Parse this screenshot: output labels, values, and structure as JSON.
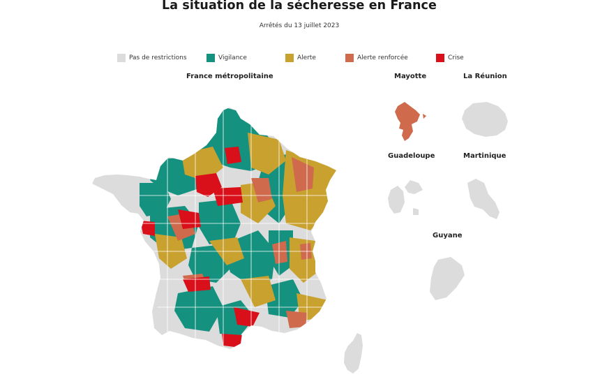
{
  "title": "La situation de la sécheresse en France",
  "subtitle": "Arrêtés du 13 juillet 2023",
  "legend": [
    {
      "label": "Pas de restrictions",
      "color": "#dcdcdc"
    },
    {
      "label": "Vigilance",
      "color": "#14917f"
    },
    {
      "label": "Alerte",
      "color": "#c9a12e"
    },
    {
      "label": "Alerte renforcée",
      "color": "#cf6a4c"
    },
    {
      "label": "Crise",
      "color": "#d9101a"
    }
  ],
  "regions": {
    "metropole": "France métropolitaine",
    "mayotte": "Mayotte",
    "reunion": "La Réunion",
    "guadeloupe": "Guadeloupe",
    "martinique": "Martinique",
    "guyane": "Guyane"
  },
  "colors": {
    "none": "#dcdcdc",
    "vigilance": "#14917f",
    "alerte": "#c9a12e",
    "renforcee": "#cf6a4c",
    "crise": "#d9101a"
  }
}
